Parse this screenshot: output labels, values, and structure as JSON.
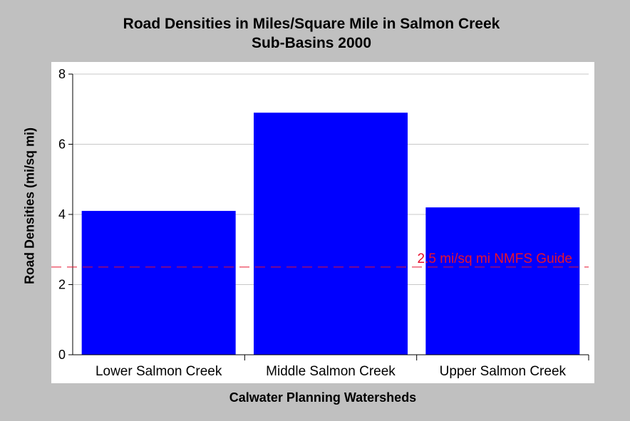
{
  "chart_data": {
    "type": "bar",
    "title_lines": [
      "Road Densities in Miles/Square Mile in Salmon Creek",
      "Sub-Basins 2000"
    ],
    "xlabel": "Calwater Planning Watersheds",
    "ylabel": "Road Densities (mi/sq mi)",
    "categories": [
      "Lower Salmon Creek",
      "Middle Salmon Creek",
      "Upper Salmon Creek"
    ],
    "values": [
      4.1,
      6.9,
      4.2
    ],
    "ylim": [
      0,
      8
    ],
    "yticks": [
      "0",
      "2",
      "4",
      "6",
      "8"
    ],
    "grid": true,
    "bar_color": "#0000ff",
    "reference_line": {
      "value": 2.5,
      "label": "2.5 mi/sq mi NMFS Guide",
      "color": "#e8112d"
    }
  }
}
